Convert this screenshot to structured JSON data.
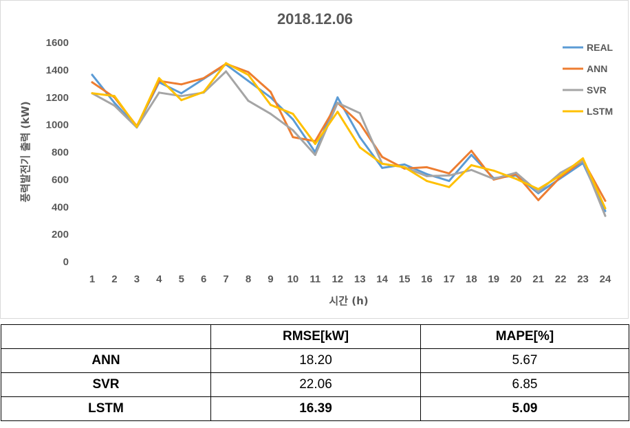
{
  "chart_data": {
    "type": "line",
    "title": "2018.12.06",
    "xlabel": "시간 (h)",
    "ylabel": "풍력발전기 출력 (kW)",
    "x": [
      1,
      2,
      3,
      4,
      5,
      6,
      7,
      8,
      9,
      10,
      11,
      12,
      13,
      14,
      15,
      16,
      17,
      18,
      19,
      20,
      21,
      22,
      23,
      24
    ],
    "ylim": [
      0,
      1600
    ],
    "yticks": [
      0,
      200,
      400,
      600,
      800,
      1000,
      1200,
      1400,
      1600
    ],
    "grid": false,
    "legend_position": "top-right",
    "series": [
      {
        "name": "REAL",
        "color": "#5b9bd5",
        "values": [
          1365,
          1160,
          985,
          1310,
          1230,
          1335,
          1440,
          1320,
          1200,
          1040,
          800,
          1200,
          910,
          685,
          710,
          640,
          590,
          780,
          610,
          630,
          500,
          610,
          720,
          370
        ]
      },
      {
        "name": "ANN",
        "color": "#ed7d31",
        "values": [
          1310,
          1200,
          990,
          1320,
          1295,
          1340,
          1445,
          1385,
          1240,
          910,
          880,
          1160,
          1010,
          765,
          680,
          690,
          645,
          810,
          600,
          640,
          450,
          620,
          740,
          445
        ]
      },
      {
        "name": "SVR",
        "color": "#a5a5a5",
        "values": [
          1230,
          1140,
          980,
          1235,
          1210,
          1235,
          1390,
          1175,
          1080,
          960,
          780,
          1160,
          1085,
          715,
          690,
          625,
          630,
          670,
          605,
          650,
          510,
          650,
          740,
          335
        ]
      },
      {
        "name": "LSTM",
        "color": "#ffc000",
        "values": [
          1230,
          1210,
          985,
          1340,
          1180,
          1240,
          1450,
          1365,
          1145,
          1080,
          860,
          1095,
          835,
          715,
          690,
          590,
          545,
          705,
          665,
          605,
          530,
          630,
          755,
          390
        ]
      }
    ]
  },
  "table": {
    "headers": [
      "",
      "RMSE[kW]",
      "MAPE[%]"
    ],
    "rows": [
      {
        "model": "ANN",
        "rmse": "18.20",
        "mape": "5.67"
      },
      {
        "model": "SVR",
        "rmse": "22.06",
        "mape": "6.85"
      },
      {
        "model": "LSTM",
        "rmse": "16.39",
        "mape": "5.09"
      }
    ]
  }
}
